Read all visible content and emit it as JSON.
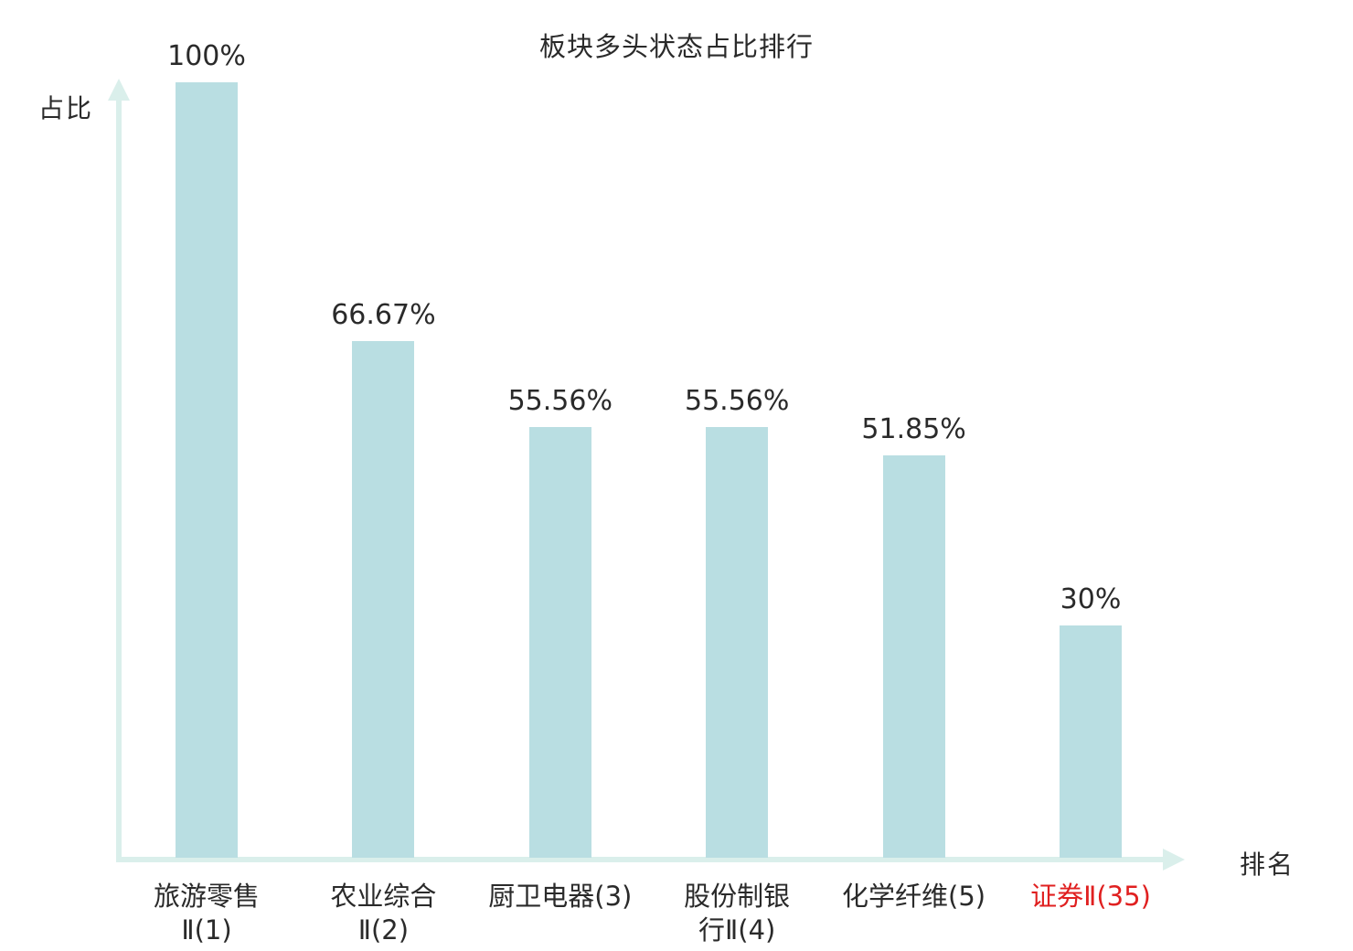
{
  "chart_data": {
    "type": "bar",
    "title": "板块多头状态占比排行",
    "xlabel": "排名",
    "ylabel": "占比",
    "ylim": [
      0,
      100
    ],
    "grid": false,
    "legend": null,
    "categories": [
      "旅游零售\nⅡ(1)",
      "农业综合\nⅡ(2)",
      "厨卫电器(3)",
      "股份制银\n行Ⅱ(4)",
      "化学纤维(5)",
      "证券Ⅱ(35)"
    ],
    "values": [
      100,
      66.67,
      55.56,
      55.56,
      51.85,
      30
    ],
    "value_labels": [
      "100%",
      "66.67%",
      "55.56%",
      "55.56%",
      "51.85%",
      "30%"
    ],
    "highlighted_category_index": 5,
    "bar_color": "#b9dee2",
    "axis_color": "#daefeb",
    "highlight_color": "#e02020",
    "text_color": "#2a2a2a"
  }
}
